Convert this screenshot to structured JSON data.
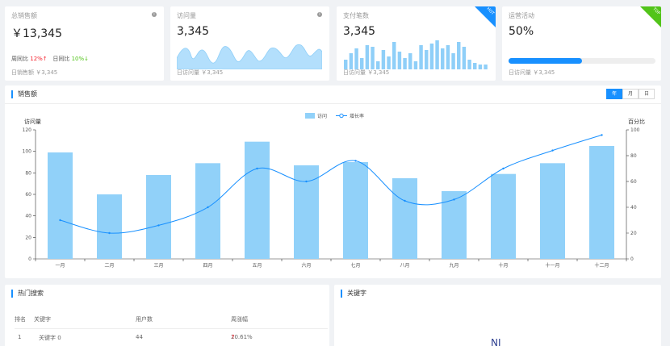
{
  "cards": [
    {
      "title": "总销售额",
      "value": "￥13,345",
      "trend_week_label": "周同比",
      "trend_week": "12%",
      "trend_day_label": "日同比",
      "trend_day": "10%",
      "foot": "日销售额 ￥3,345"
    },
    {
      "title": "访问量",
      "value": "3,345",
      "foot": "日访问量 ￥3,345"
    },
    {
      "title": "支付笔数",
      "value": "3,345",
      "ribbon": "HOT",
      "foot": "日访问量 ￥3,345"
    },
    {
      "title": "运营活动",
      "value": "50%",
      "ribbon": "TOP",
      "progress": 0.5,
      "foot": "日访问量 ￥3,345"
    }
  ],
  "main": {
    "title": "销售额",
    "tabs": [
      "年",
      "月",
      "日"
    ]
  },
  "chart_data": {
    "type": "bar",
    "categories": [
      "一月",
      "二月",
      "三月",
      "四月",
      "五月",
      "六月",
      "七月",
      "八月",
      "九月",
      "十月",
      "十一月",
      "十二月"
    ],
    "series": [
      {
        "name": "访问",
        "type": "bar",
        "axis": "left",
        "color": "#91d1f9",
        "values": [
          99,
          60,
          78,
          89,
          109,
          87,
          90,
          75,
          63,
          79,
          89,
          105
        ]
      },
      {
        "name": "增长率",
        "type": "line",
        "axis": "right",
        "color": "#1890ff",
        "values": [
          30,
          20,
          26,
          40,
          70,
          60,
          76,
          45,
          46,
          70,
          84,
          96
        ]
      }
    ],
    "ylabel_left": "访问量",
    "ylabel_right": "百分比",
    "ylim_left": [
      0,
      120
    ],
    "yticks_left": [
      0,
      20,
      40,
      60,
      80,
      100,
      120
    ],
    "ylim_right": [
      0,
      100
    ],
    "yticks_right": [
      0,
      20,
      40,
      60,
      80,
      100
    ],
    "legend": "top-center",
    "grid": false
  },
  "hot": {
    "title": "热门搜索",
    "headers": [
      "排名",
      "关键字",
      "用户数",
      "周涨幅"
    ],
    "rows": [
      {
        "rank": "1",
        "keyword": "关键字 0",
        "users": "44",
        "change": "20.61%"
      }
    ]
  },
  "keywords": {
    "title": "关键字",
    "word": "NJ"
  }
}
